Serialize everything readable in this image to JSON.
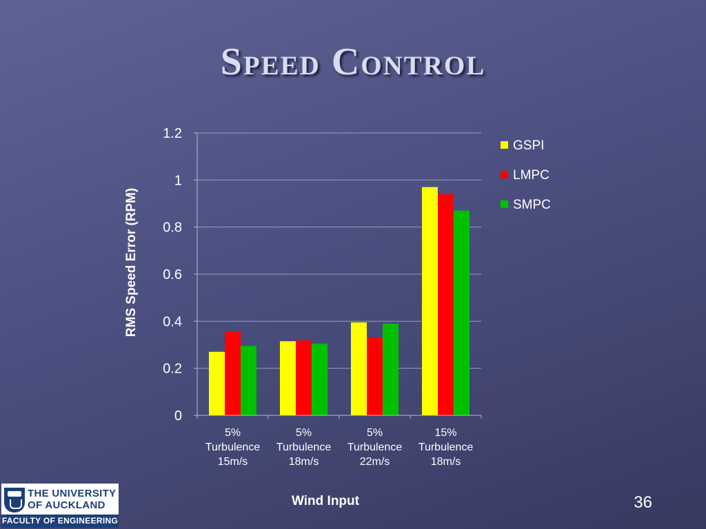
{
  "slide": {
    "title": "Speed Control",
    "page_number": "36"
  },
  "logo": {
    "line1": "THE UNIVERSITY",
    "line2": "OF AUCKLAND",
    "faculty": "FACULTY OF ENGINEERING"
  },
  "chart_data": {
    "type": "bar",
    "categories": [
      [
        "5%",
        "Turbulence",
        "15m/s"
      ],
      [
        "5%",
        "Turbulence",
        "18m/s"
      ],
      [
        "5%",
        "Turbulence",
        "22m/s"
      ],
      [
        "15%",
        "Turbulence",
        "18m/s"
      ]
    ],
    "series": [
      {
        "name": "GSPI",
        "color": "#ffff00",
        "values": [
          0.27,
          0.315,
          0.395,
          0.97
        ]
      },
      {
        "name": "LMPC",
        "color": "#ff0000",
        "values": [
          0.355,
          0.318,
          0.33,
          0.94
        ]
      },
      {
        "name": "SMPC",
        "color": "#00c000",
        "values": [
          0.295,
          0.305,
          0.39,
          0.87
        ]
      }
    ],
    "xlabel": "Wind Input",
    "ylabel": "RMS Speed Error (RPM)",
    "ylim": [
      0,
      1.2
    ],
    "yticks": [
      "0",
      "0.2",
      "0.4",
      "0.6",
      "0.8",
      "1",
      "1.2"
    ],
    "grid": true,
    "legend_position": "right"
  }
}
